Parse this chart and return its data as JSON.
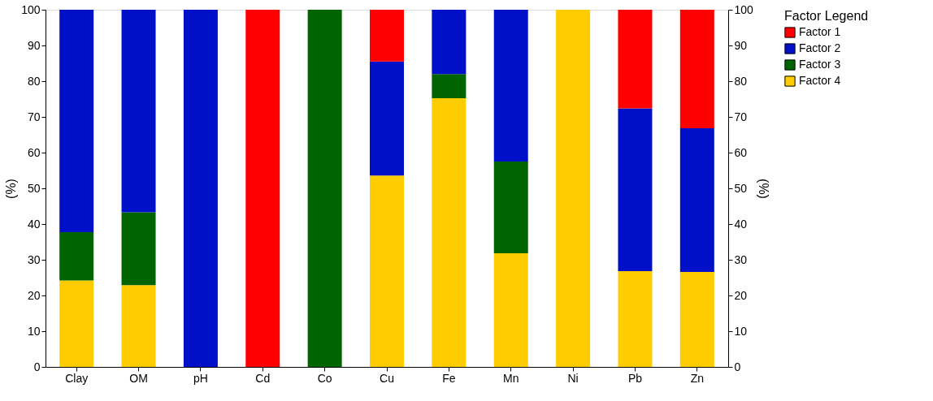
{
  "chart_data": {
    "type": "bar",
    "stacked": true,
    "categories": [
      "Clay",
      "OM",
      "pH",
      "Cd",
      "Co",
      "Cu",
      "Fe",
      "Mn",
      "Ni",
      "Pb",
      "Zn"
    ],
    "series": [
      {
        "name": "Factor 4",
        "color": "#ffcc00",
        "values": [
          24.2,
          22.9,
          0,
          0,
          0,
          53.6,
          75.2,
          31.8,
          100,
          26.8,
          26.6
        ]
      },
      {
        "name": "Factor 3",
        "color": "#006400",
        "values": [
          13.5,
          20.4,
          0,
          0,
          100,
          0,
          6.8,
          25.7,
          0,
          0,
          0
        ]
      },
      {
        "name": "Factor 2",
        "color": "#0010c8",
        "values": [
          62.3,
          56.7,
          100,
          0,
          0,
          31.9,
          18.0,
          42.5,
          0,
          45.6,
          40.2
        ]
      },
      {
        "name": "Factor 1",
        "color": "#ff0000",
        "values": [
          0,
          0,
          0,
          100,
          0,
          14.5,
          0,
          0,
          0,
          27.6,
          33.2
        ]
      }
    ],
    "ylabel": "(%)",
    "y2label": "(%)",
    "legend_title": "Factor Legend",
    "legend": "top right",
    "ylim": [
      0,
      100
    ],
    "yticks": [
      0,
      10,
      20,
      30,
      40,
      50,
      60,
      70,
      80,
      90,
      100
    ],
    "y2lim": [
      0,
      100
    ],
    "y2ticks": [
      0,
      10,
      20,
      30,
      40,
      50,
      60,
      70,
      80,
      90,
      100
    ],
    "grid": false
  }
}
